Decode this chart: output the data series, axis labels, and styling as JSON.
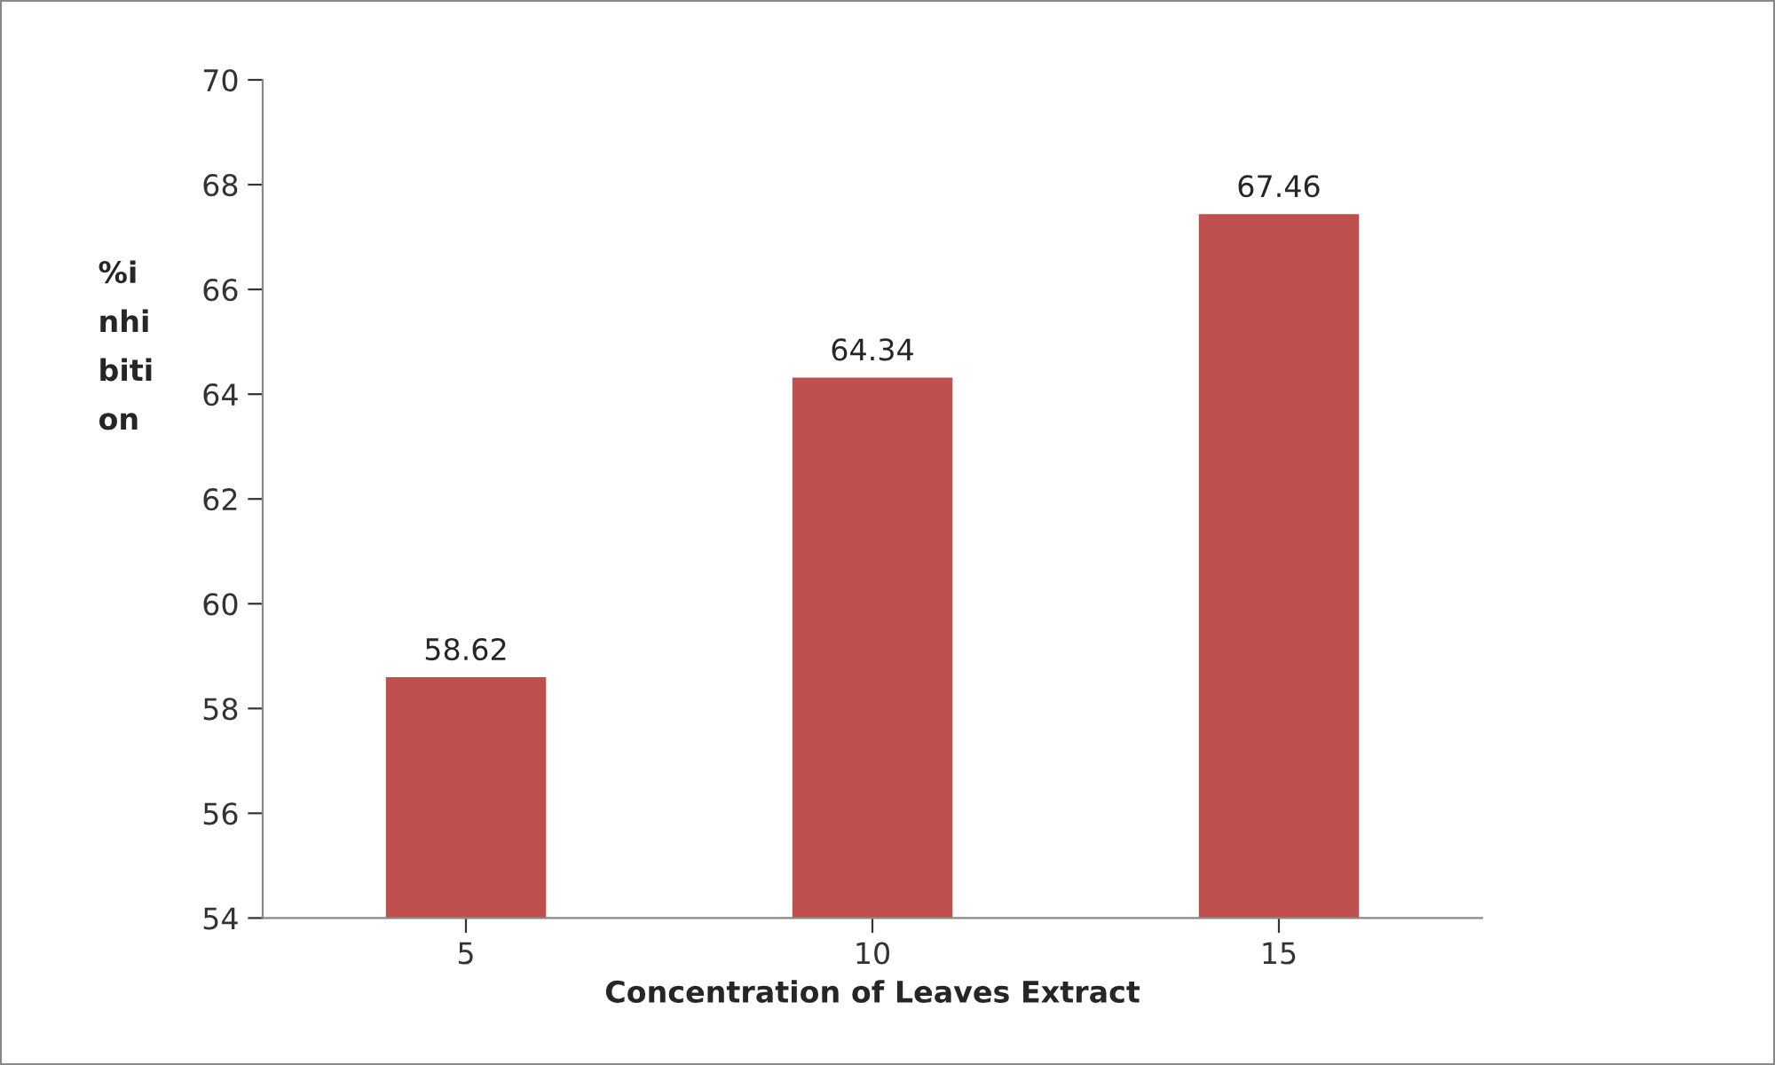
{
  "chart_data": {
    "type": "bar",
    "xlabel": "Concentration of Leaves Extract",
    "ylabel": "%i\nnhi\nbiti\non",
    "categories": [
      "5",
      "10",
      "15"
    ],
    "values": [
      58.62,
      64.34,
      67.46
    ],
    "color": "#c0504d",
    "ylim": [
      54,
      70
    ],
    "yticks": [
      54,
      56,
      58,
      60,
      62,
      64,
      66,
      68,
      70
    ],
    "data_labels": true,
    "grid": false,
    "legend": false
  }
}
